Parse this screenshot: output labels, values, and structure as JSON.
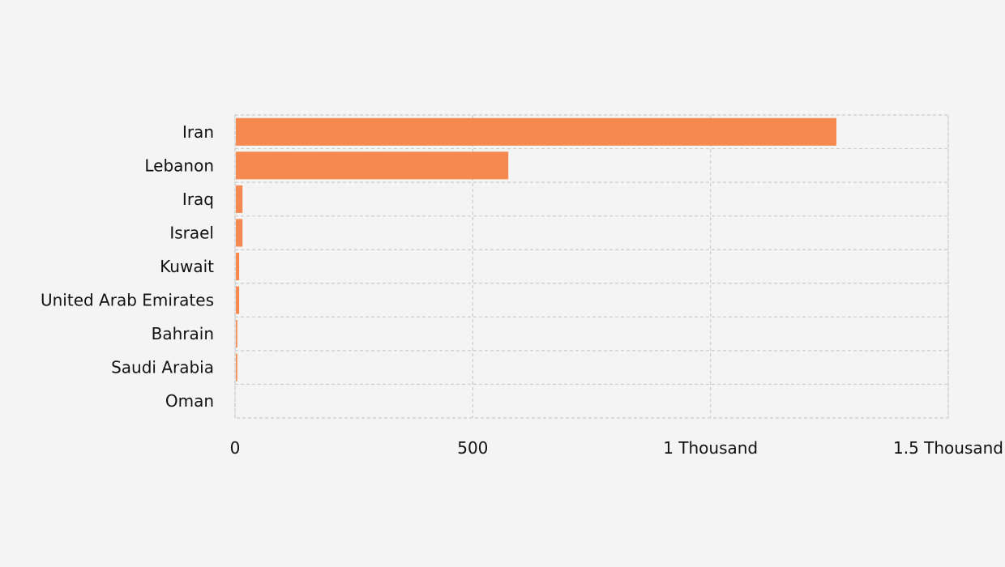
{
  "chart_data": {
    "type": "bar",
    "orientation": "horizontal",
    "categories": [
      "Iran",
      "Lebanon",
      "Iraq",
      "Israel",
      "Kuwait",
      "United Arab Emirates",
      "Bahrain",
      "Saudi Arabia",
      "Oman"
    ],
    "values": [
      1263,
      573,
      14,
      14,
      7,
      7,
      3,
      3,
      0
    ],
    "xlim": [
      0,
      1500
    ],
    "xticks": [
      {
        "value": 0,
        "label": "0"
      },
      {
        "value": 500,
        "label": "500"
      },
      {
        "value": 1000,
        "label": "1 Thousand"
      },
      {
        "value": 1500,
        "label": "1.5 Thousand"
      }
    ],
    "grid": true,
    "grid_style": "dashed",
    "title": "",
    "xlabel": "",
    "ylabel": "",
    "colors": {
      "bar": "#f5894f",
      "grid": "#cccccc",
      "background": "#f4f4f4",
      "text": "#111111"
    }
  }
}
